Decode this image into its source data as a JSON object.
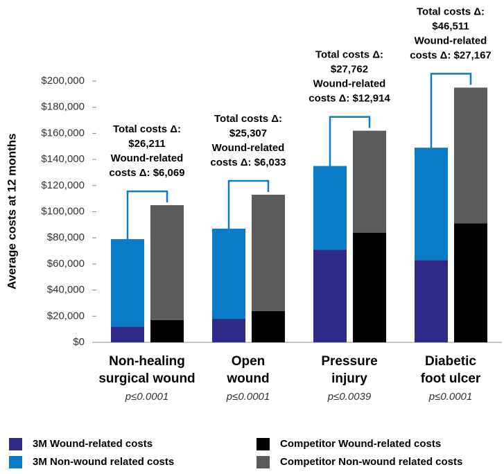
{
  "chart_data": {
    "type": "grouped-stacked-bar",
    "y_label": "Average costs at 12 months",
    "categories": [
      [
        "Non-healing",
        "surgical wound"
      ],
      [
        "Open",
        "wound"
      ],
      [
        "Pressure",
        "injury"
      ],
      [
        "Diabetic",
        "foot ulcer"
      ]
    ],
    "p_values": [
      "p≤0.0001",
      "p≤0.0001",
      "p≤0.0039",
      "p≤0.0001"
    ],
    "series": [
      {
        "name": "3M Wound-related costs",
        "color": "#2e2a85",
        "stack": "3M",
        "values": [
          12000,
          18000,
          71000,
          63000
        ]
      },
      {
        "name": "3M Non-wound related costs",
        "color": "#0a7bc8",
        "stack": "3M",
        "values": [
          67000,
          69000,
          64000,
          86000
        ]
      },
      {
        "name": "Competitor Wound-related costs",
        "color": "#000000",
        "stack": "Competitor",
        "values": [
          17000,
          24000,
          84000,
          91000
        ]
      },
      {
        "name": "Competitor Non-wound related costs",
        "color": "#5a5b5d",
        "stack": "Competitor",
        "values": [
          88000,
          89000,
          78000,
          104000
        ]
      }
    ],
    "annotations": [
      [
        "Total costs Δ:",
        "$26,211",
        "Wound-related",
        "costs Δ: $6,069"
      ],
      [
        "Total costs Δ:",
        "$25,307",
        "Wound-related",
        "costs Δ: $6,033"
      ],
      [
        "Total costs Δ:",
        "$27,762",
        "Wound-related",
        "costs Δ: $12,914"
      ],
      [
        "Total costs Δ:",
        "$46,511",
        "Wound-related",
        "costs Δ: $27,167"
      ]
    ],
    "ylim": [
      0,
      200000
    ],
    "yticks": [
      {
        "value": 0,
        "label": "$0"
      },
      {
        "value": 20000,
        "label": "$20,000"
      },
      {
        "value": 40000,
        "label": "$40,000"
      },
      {
        "value": 60000,
        "label": "$60,000"
      },
      {
        "value": 80000,
        "label": "$80,000"
      },
      {
        "value": 100000,
        "label": "$100,000"
      },
      {
        "value": 120000,
        "label": "$120,000"
      },
      {
        "value": 140000,
        "label": "$140,000"
      },
      {
        "value": 160000,
        "label": "$160,000"
      },
      {
        "value": 180000,
        "label": "$180,000"
      },
      {
        "value": 200000,
        "label": "$200,000"
      }
    ]
  }
}
